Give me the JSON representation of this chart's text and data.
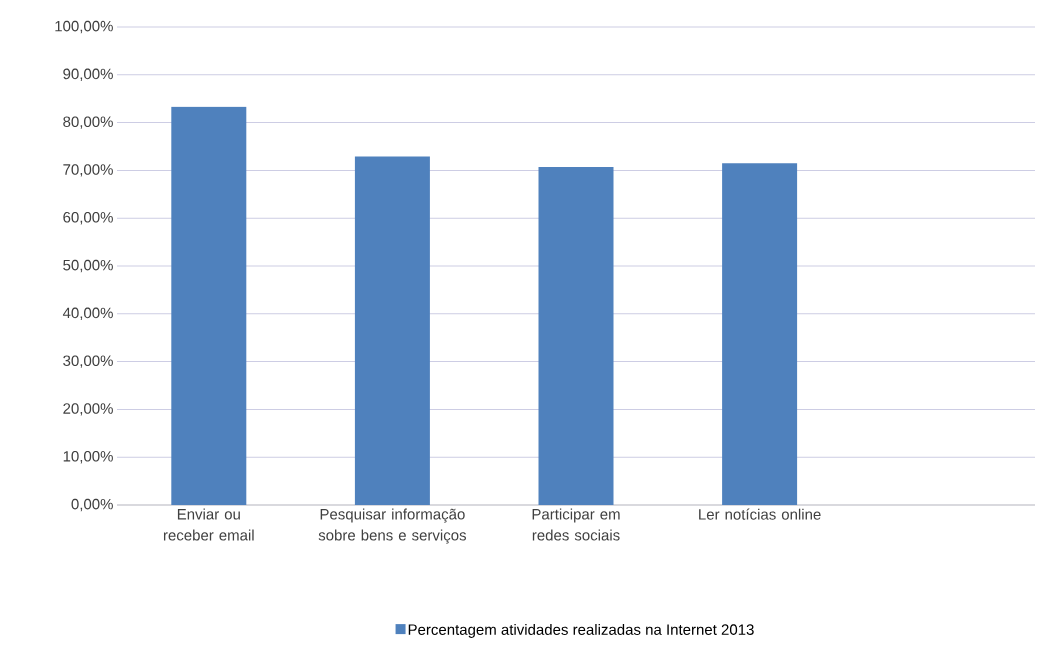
{
  "chart_data": {
    "type": "bar",
    "categories": [
      "Enviar ou receber email",
      "Pesquisar informação sobre bens e serviços",
      "Participar em redes sociais",
      "Ler notícias online",
      null
    ],
    "series": [
      {
        "name": "Percentagem atividades realizadas na Internet 2013",
        "color": "#4f81bd",
        "values": [
          83.3,
          72.9,
          70.7,
          71.5,
          null
        ]
      }
    ],
    "ylim": [
      0,
      100
    ],
    "yticks": [
      {
        "value": 0,
        "label": "0,00%"
      },
      {
        "value": 10,
        "label": "10,00%"
      },
      {
        "value": 20,
        "label": "20,00%"
      },
      {
        "value": 30,
        "label": "30,00%"
      },
      {
        "value": 40,
        "label": "40,00%"
      },
      {
        "value": 50,
        "label": "50,00%"
      },
      {
        "value": 60,
        "label": "60,00%"
      },
      {
        "value": 70,
        "label": "70,00%"
      },
      {
        "value": 80,
        "label": "80,00%"
      },
      {
        "value": 90,
        "label": "90,00%"
      },
      {
        "value": 100,
        "label": "100,00%"
      }
    ],
    "grid": "y",
    "legend": "bottom"
  }
}
